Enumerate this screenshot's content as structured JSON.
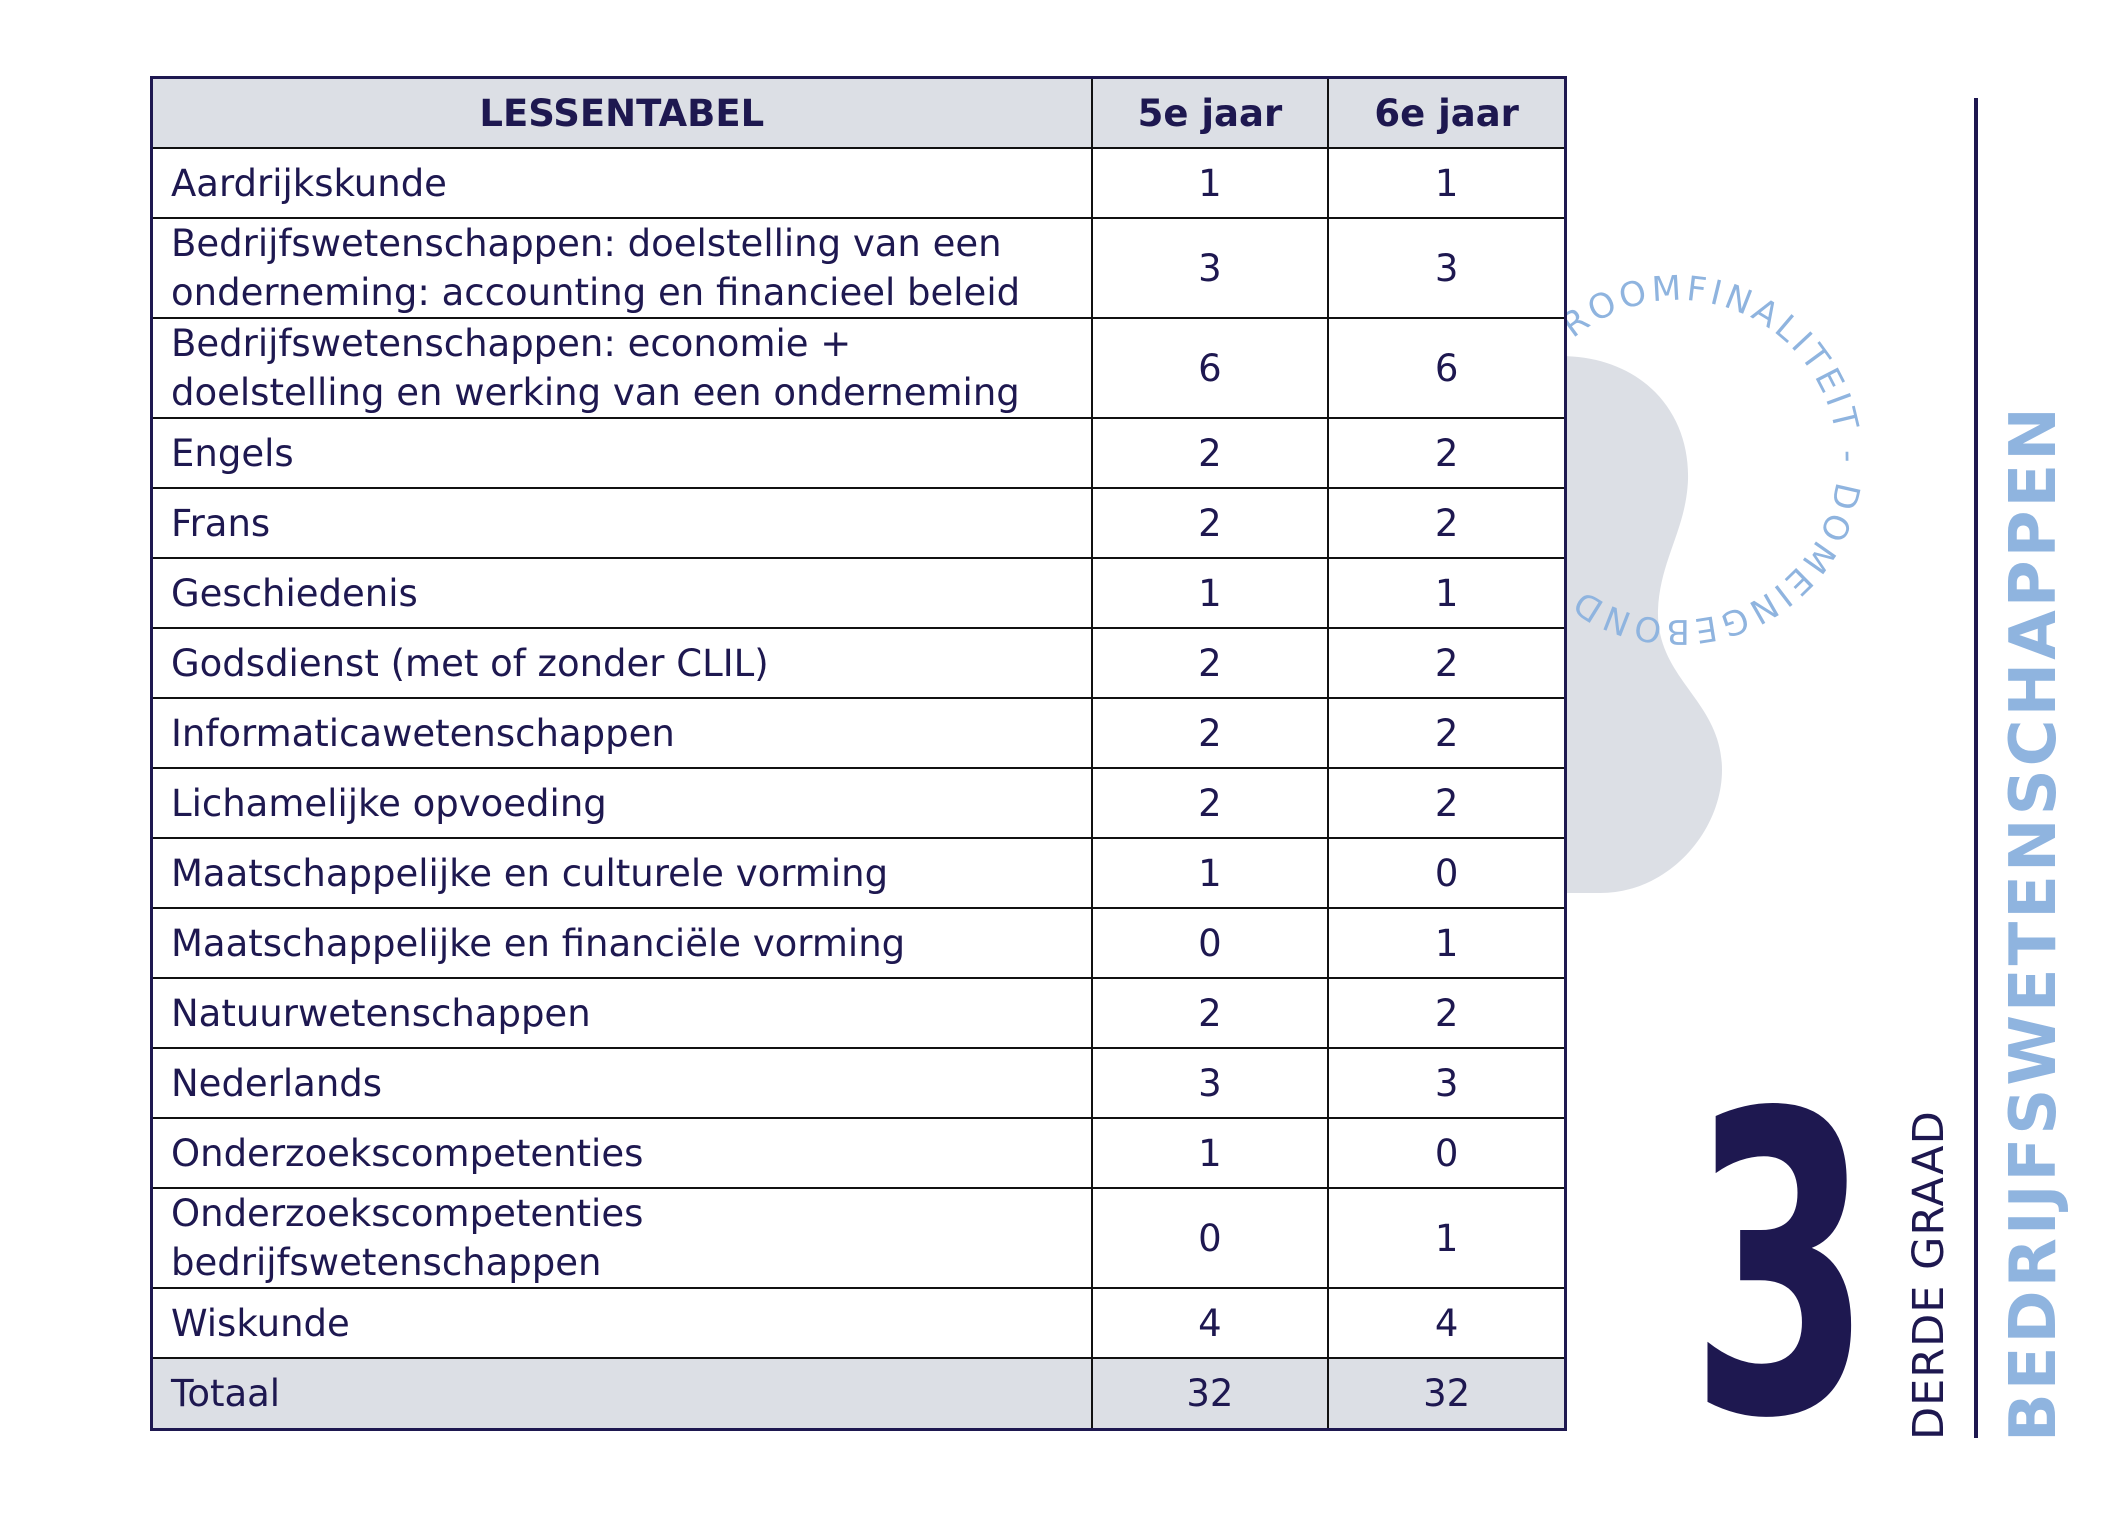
{
  "colors": {
    "navy": "#1e1850",
    "light_blue": "#8fb4df",
    "gray_fill": "#dcdfe5"
  },
  "stamp_text": "ROOMFINALITEIT - DOMEINGEBOND",
  "grade_number": "3",
  "grade_label": "DERDE GRAAD",
  "study_field": "BEDRIJFSWETENSCHAPPEN",
  "table": {
    "headers": [
      "LESSENTABEL",
      "5e jaar",
      "6e jaar"
    ],
    "rows": [
      {
        "subject": "Aardrijkskunde",
        "y5": "1",
        "y6": "1"
      },
      {
        "subject": "Bedrijfswetenschappen: doelstelling van een onderneming: accounting en financieel beleid",
        "y5": "3",
        "y6": "3"
      },
      {
        "subject": "Bedrijfswetenschappen: economie + doelstelling en werking van een onderneming",
        "y5": "6",
        "y6": "6"
      },
      {
        "subject": "Engels",
        "y5": "2",
        "y6": "2"
      },
      {
        "subject": "Frans",
        "y5": "2",
        "y6": "2"
      },
      {
        "subject": "Geschiedenis",
        "y5": "1",
        "y6": "1"
      },
      {
        "subject": "Godsdienst (met of zonder CLIL)",
        "y5": "2",
        "y6": "2"
      },
      {
        "subject": "Informaticawetenschappen",
        "y5": "2",
        "y6": "2"
      },
      {
        "subject": "Lichamelijke opvoeding",
        "y5": "2",
        "y6": "2"
      },
      {
        "subject": "Maatschappelijke en culturele vorming",
        "y5": "1",
        "y6": "0"
      },
      {
        "subject": "Maatschappelijke en financiële vorming",
        "y5": "0",
        "y6": "1"
      },
      {
        "subject": "Natuurwetenschappen",
        "y5": "2",
        "y6": "2"
      },
      {
        "subject": "Nederlands",
        "y5": "3",
        "y6": "3"
      },
      {
        "subject": "Onderzoekscompetenties",
        "y5": "1",
        "y6": "0"
      },
      {
        "subject": "Onderzoekscompetenties bedrijfswetenschappen",
        "y5": "0",
        "y6": "1"
      },
      {
        "subject": "Wiskunde",
        "y5": "4",
        "y6": "4"
      }
    ],
    "total": {
      "label": "Totaal",
      "y5": "32",
      "y6": "32"
    }
  }
}
